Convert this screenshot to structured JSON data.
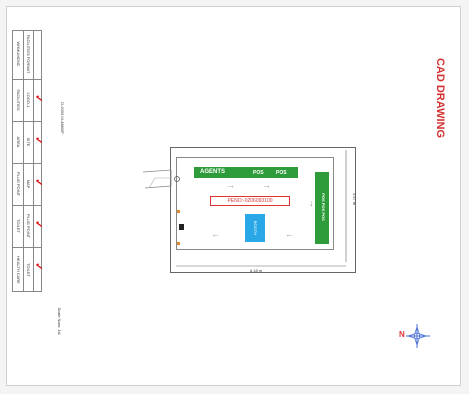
{
  "title": "CAD DRAWING",
  "top_note": "D-2009 III-4880IP",
  "scale_note": "Scale Num: 1st",
  "legend": {
    "headers": [
      "WHMUMONC",
      "FACILITIES FORMAT"
    ],
    "rows": [
      {
        "label_a": "FACILITIES",
        "label_b": "LOGO-1"
      },
      {
        "label_a": "AREA",
        "label_b": "SITE"
      },
      {
        "label_a": "PLUG POINT",
        "label_b": "MAP"
      },
      {
        "label_a": "TOILET",
        "label_b": "PLUG POINT"
      },
      {
        "label_a": "HEALTH CARE",
        "label_b": "TOILET"
      }
    ],
    "mark": "✓"
  },
  "plan": {
    "agents_label": "AGENTS",
    "pos_a": "POS",
    "pos_b": "POS",
    "side_label": "POS POS POS",
    "peno": "PENO:-0206093100",
    "booth": "BOOTH",
    "dim_width": "6.18 m",
    "dim_height": "3.97 m"
  },
  "compass": "N",
  "colors": {
    "title": "#d32f2f",
    "green": "#2e9c3a",
    "booth": "#2aa7e6"
  }
}
